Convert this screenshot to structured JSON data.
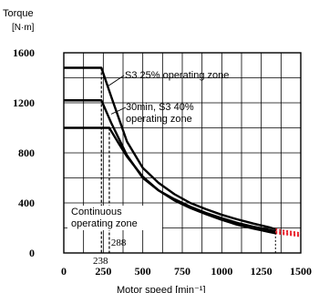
{
  "chart_data": {
    "type": "line",
    "y_unit_label_line1": "Torque",
    "y_unit_label_line2": "[N·m]",
    "xlabel": "Motor speed [min⁻¹]",
    "xlim": [
      0,
      1500
    ],
    "ylim": [
      0,
      1600
    ],
    "x_ticks": [
      0,
      250,
      500,
      750,
      1000,
      1250,
      1500
    ],
    "y_ticks": [
      0,
      400,
      800,
      1200,
      1600
    ],
    "grid": true,
    "marked_speeds": [
      238,
      288
    ],
    "series": [
      {
        "name": "S3 25% operating zone",
        "x": [
          0,
          238,
          300,
          400,
          500,
          600,
          700,
          800,
          900,
          1000,
          1100,
          1200,
          1300,
          1340
        ],
        "y": [
          1480,
          1480,
          1250,
          890,
          680,
          560,
          470,
          400,
          350,
          305,
          268,
          235,
          205,
          190
        ]
      },
      {
        "name": "30min, S3 40% operating zone",
        "x": [
          0,
          238,
          300,
          400,
          500,
          600,
          700,
          800,
          900,
          1000,
          1100,
          1200,
          1300,
          1340
        ],
        "y": [
          1220,
          1220,
          1040,
          780,
          600,
          500,
          430,
          370,
          320,
          278,
          240,
          210,
          185,
          172
        ]
      },
      {
        "name": "Continuous operating zone",
        "x": [
          0,
          288,
          350,
          400,
          500,
          600,
          700,
          800,
          900,
          1000,
          1100,
          1200,
          1300,
          1340
        ],
        "y": [
          1000,
          1000,
          870,
          770,
          610,
          500,
          420,
          360,
          310,
          265,
          225,
          195,
          168,
          158
        ]
      },
      {
        "x": [
          1340,
          1400,
          1460,
          1500
        ],
        "y": [
          190,
          177,
          166,
          158
        ]
      },
      {
        "x": [
          1340,
          1400,
          1460,
          1500
        ],
        "y": [
          172,
          161,
          152,
          145
        ]
      },
      {
        "x": [
          1340,
          1400,
          1460,
          1500
        ],
        "y": [
          158,
          149,
          140,
          133
        ]
      }
    ]
  }
}
